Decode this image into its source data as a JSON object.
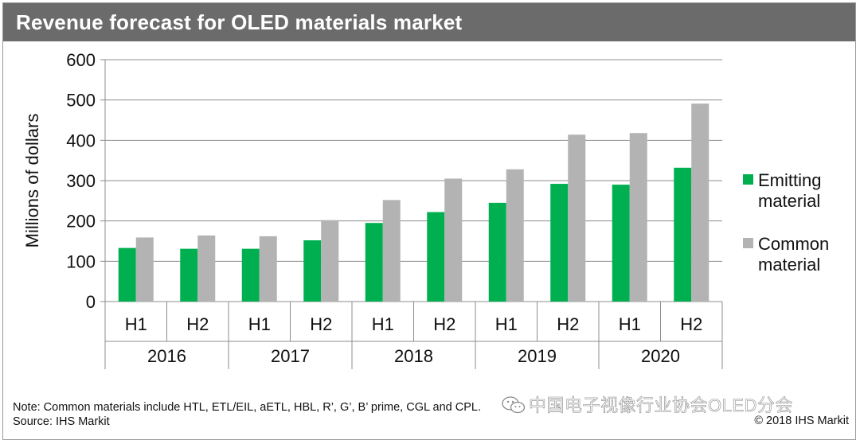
{
  "title": "Revenue forecast for OLED materials market",
  "note": "Note: Common materials include HTL, ETL/EIL, aETL, HBL, R’, G’, B’ prime, CGL and CPL.",
  "source": "Source: IHS Markit",
  "copyright": "© 2018 IHS Markit",
  "watermark": "中国电子视像行业协会OLED分会",
  "watermark_icon": "wechat-icon",
  "chart_data": {
    "type": "bar",
    "ylabel": "Millions of dollars",
    "ylim": [
      0,
      600
    ],
    "yticks": [
      0,
      100,
      200,
      300,
      400,
      500,
      600
    ],
    "grid": true,
    "legend_position": "right",
    "categories": [
      "H1",
      "H2",
      "H1",
      "H2",
      "H1",
      "H2",
      "H1",
      "H2",
      "H1",
      "H2"
    ],
    "groups": [
      {
        "label": "2016",
        "span": 2
      },
      {
        "label": "2017",
        "span": 2
      },
      {
        "label": "2018",
        "span": 2
      },
      {
        "label": "2019",
        "span": 2
      },
      {
        "label": "2020",
        "span": 2
      }
    ],
    "series": [
      {
        "name": "Emitting material",
        "color": "#00b050",
        "values": [
          133,
          131,
          131,
          152,
          195,
          222,
          245,
          292,
          290,
          332
        ]
      },
      {
        "name": "Common material",
        "color": "#b3b3b3",
        "values": [
          159,
          164,
          162,
          202,
          252,
          305,
          328,
          414,
          418,
          491
        ]
      }
    ]
  }
}
